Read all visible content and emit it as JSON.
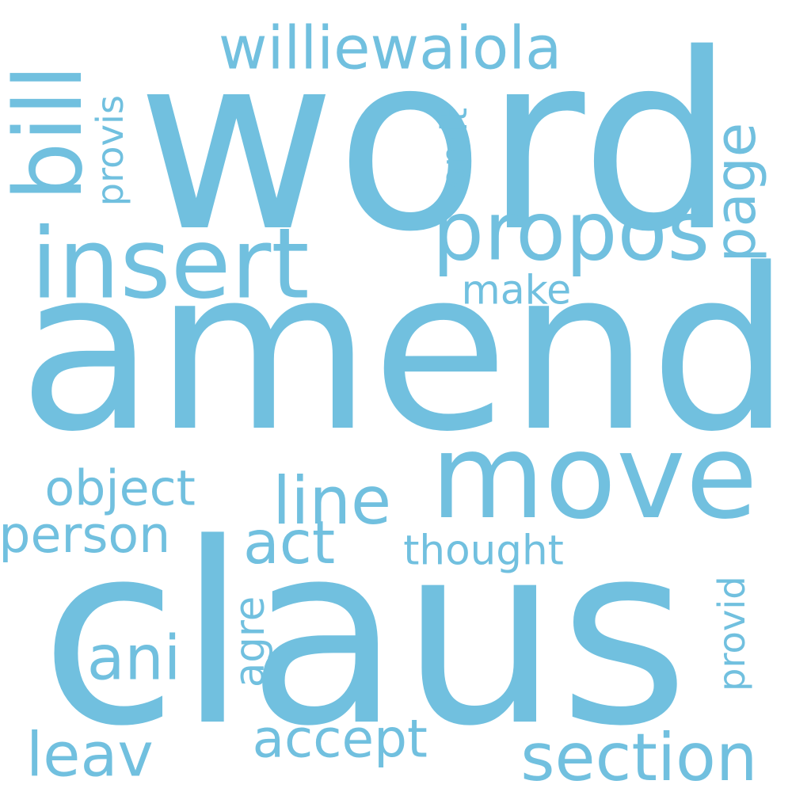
{
  "color": "#71c0df",
  "words": [
    {
      "text": "word",
      "vertical": false
    },
    {
      "text": "amend",
      "vertical": false
    },
    {
      "text": "claus",
      "vertical": false
    },
    {
      "text": "move",
      "vertical": false
    },
    {
      "text": "insert",
      "vertical": false
    },
    {
      "text": "williewaiola",
      "vertical": false
    },
    {
      "text": "propos",
      "vertical": false
    },
    {
      "text": "bill",
      "vertical": true
    },
    {
      "text": "provis",
      "vertical": true
    },
    {
      "text": "omit",
      "vertical": true
    },
    {
      "text": "page",
      "vertical": true
    },
    {
      "text": "make",
      "vertical": false
    },
    {
      "text": "object",
      "vertical": false
    },
    {
      "text": "line",
      "vertical": false
    },
    {
      "text": "person",
      "vertical": false
    },
    {
      "text": "act",
      "vertical": false
    },
    {
      "text": "thought",
      "vertical": false
    },
    {
      "text": "provid",
      "vertical": true
    },
    {
      "text": "ani",
      "vertical": false
    },
    {
      "text": "agre",
      "vertical": true
    },
    {
      "text": "leav",
      "vertical": false
    },
    {
      "text": "accept",
      "vertical": false
    },
    {
      "text": "section",
      "vertical": false
    }
  ]
}
